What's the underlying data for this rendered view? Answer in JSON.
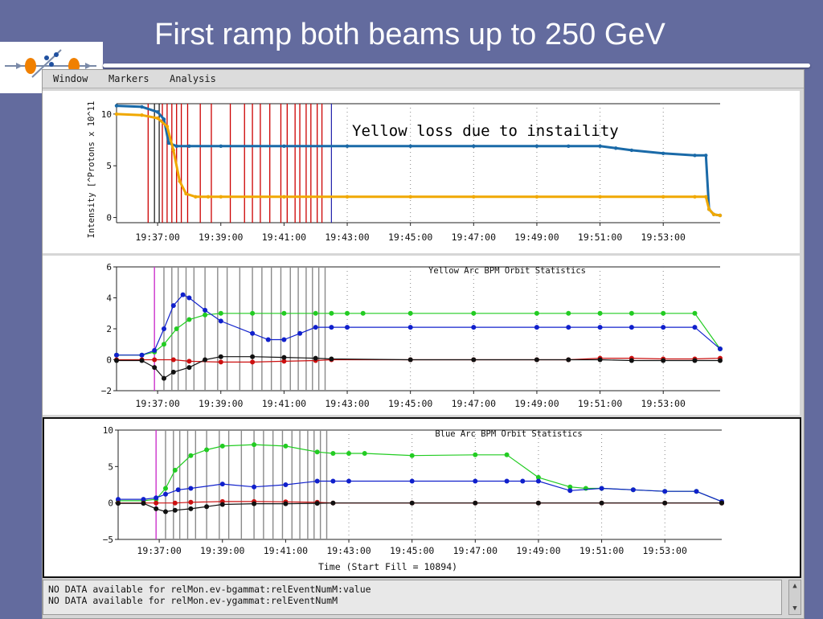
{
  "slide": {
    "title": "First ramp both beams up to 250 GeV"
  },
  "menu": {
    "items": [
      "Window",
      "Markers",
      "Analysis"
    ]
  },
  "status": {
    "lines": [
      "NO DATA available for relMon.ev-bgammat:relEventNumM:value",
      "NO DATA available for relMon.ev-ygammat:relEventNumM"
    ]
  },
  "colors": {
    "yellow_beam": "#f0a800",
    "blue_beam": "#1060a0",
    "marker_red": "#cc0000",
    "green": "#22cc22",
    "blue": "#1020cc",
    "red": "#cc1010",
    "black": "#111111"
  },
  "chart_data": [
    {
      "type": "line",
      "title": "",
      "annotation": "Yellow loss due to instaility",
      "ylabel": "Intensity [^Protons x 10^11",
      "xlabel": "",
      "time_ticks": [
        "19:37:00",
        "19:39:00",
        "19:41:00",
        "19:43:00",
        "19:45:00",
        "19:47:00",
        "19:49:00",
        "19:51:00",
        "19:53:00"
      ],
      "y_ticks": [
        "0",
        "5",
        "10"
      ],
      "ylim": [
        -0.5,
        11
      ],
      "xlim_minutes": [
        -1.3,
        17.8
      ],
      "grid": "vertical dotted",
      "series": [
        {
          "color": "#1a6aa8",
          "x": [
            -1.3,
            -0.5,
            0,
            0.2,
            0.35,
            0.6,
            1,
            2,
            4,
            6,
            8,
            10,
            12,
            13,
            14,
            14.5,
            15,
            16,
            17,
            17.35,
            17.45,
            17.6,
            17.8
          ],
          "y": [
            10.8,
            10.7,
            10.2,
            9.5,
            7.2,
            6.9,
            6.9,
            6.9,
            6.9,
            6.9,
            6.9,
            6.9,
            6.9,
            6.9,
            6.9,
            6.7,
            6.5,
            6.2,
            6,
            6,
            0.8,
            0.3,
            0.2
          ]
        },
        {
          "color": "#f0a800",
          "x": [
            -1.3,
            -0.5,
            0,
            0.3,
            0.5,
            0.7,
            0.9,
            1.2,
            1.6,
            2,
            4,
            6,
            8,
            10,
            12,
            14,
            16,
            17,
            17.35,
            17.45,
            17.6,
            17.8
          ],
          "y": [
            10,
            9.9,
            9.6,
            8.8,
            6.5,
            3.5,
            2.3,
            2,
            2,
            2,
            2,
            2,
            2,
            2,
            2,
            2,
            2,
            2,
            2,
            0.8,
            0.3,
            0.2
          ]
        }
      ],
      "markers_red_minutes": [
        -0.3,
        0.15,
        0.3,
        0.45,
        0.6,
        0.75,
        0.95,
        1.35,
        1.7,
        2.3,
        2.75,
        3,
        3.25,
        3.55,
        3.9,
        4.1,
        4.35,
        4.5,
        4.7,
        4.85,
        5.05,
        5.2
      ],
      "markers_black_minutes": [
        -0.1,
        0.05
      ],
      "marker_blue_minutes": [
        5.5
      ]
    },
    {
      "type": "line",
      "title": "Yellow Arc BPM Orbit Statistics",
      "xlabel": "",
      "time_ticks": [
        "19:37:00",
        "19:39:00",
        "19:41:00",
        "19:43:00",
        "19:45:00",
        "19:47:00",
        "19:49:00",
        "19:51:00",
        "19:53:00"
      ],
      "y_ticks": [
        "6",
        "4",
        "2",
        "0",
        "−2"
      ],
      "ylim": [
        -2,
        6
      ],
      "xlim_minutes": [
        -1.3,
        17.8
      ],
      "grid": "vertical dotted",
      "series": [
        {
          "color": "#22cc22",
          "x": [
            -1.3,
            -0.5,
            -0.1,
            0.2,
            0.6,
            1,
            1.5,
            2,
            3,
            4,
            5,
            5.5,
            6,
            6.5,
            8,
            10,
            12,
            13,
            14,
            15,
            16,
            17,
            17.8
          ],
          "y": [
            0.3,
            0.3,
            0.5,
            1,
            2,
            2.6,
            2.9,
            3,
            3,
            3,
            3,
            3,
            3,
            3,
            3,
            3,
            3,
            3,
            3,
            3,
            3,
            3,
            0.7
          ]
        },
        {
          "color": "#1020cc",
          "x": [
            -1.3,
            -0.5,
            -0.1,
            0.2,
            0.5,
            0.8,
            1,
            1.5,
            2,
            3,
            3.5,
            4,
            4.5,
            5,
            5.5,
            6,
            8,
            10,
            12,
            13,
            14,
            15,
            16,
            17,
            17.8
          ],
          "y": [
            0.3,
            0.3,
            0.6,
            2,
            3.5,
            4.2,
            4,
            3.2,
            2.5,
            1.7,
            1.3,
            1.3,
            1.7,
            2.1,
            2.1,
            2.1,
            2.1,
            2.1,
            2.1,
            2.1,
            2.1,
            2.1,
            2.1,
            2.1,
            0.7
          ]
        },
        {
          "color": "#cc1010",
          "x": [
            -1.3,
            -0.5,
            -0.1,
            0.5,
            1,
            2,
            3,
            4,
            5,
            5.5,
            8,
            10,
            12,
            13,
            14,
            15,
            16,
            17,
            17.8
          ],
          "y": [
            0,
            0,
            0,
            0,
            -0.1,
            -0.15,
            -0.15,
            -0.1,
            -0.05,
            0,
            0,
            0,
            0,
            0,
            0.1,
            0.1,
            0.05,
            0.05,
            0.1
          ]
        },
        {
          "color": "#111111",
          "x": [
            -1.3,
            -0.5,
            -0.1,
            0.2,
            0.5,
            1,
            1.5,
            2,
            3,
            4,
            5,
            5.5,
            8,
            10,
            12,
            13,
            14,
            15,
            16,
            17,
            17.8
          ],
          "y": [
            -0.05,
            -0.05,
            -0.5,
            -1.2,
            -0.8,
            -0.5,
            0,
            0.2,
            0.2,
            0.15,
            0.1,
            0.05,
            0,
            0,
            0,
            0,
            0,
            -0.05,
            -0.05,
            -0.05,
            -0.05
          ]
        }
      ],
      "markers_magenta_minutes": [
        -0.1
      ],
      "markers_grey_minutes": [
        0.2,
        0.45,
        0.65,
        0.9,
        1.15,
        1.5,
        1.9,
        2.2,
        2.6,
        3.0,
        3.3,
        3.6,
        3.9,
        4.2,
        4.45,
        4.7,
        4.9,
        5.1,
        5.3
      ]
    },
    {
      "type": "line",
      "title": "Blue Arc BPM Orbit Statistics",
      "xlabel": "Time (Start Fill = 10894)",
      "time_ticks": [
        "19:37:00",
        "19:39:00",
        "19:41:00",
        "19:43:00",
        "19:45:00",
        "19:47:00",
        "19:49:00",
        "19:51:00",
        "19:53:00"
      ],
      "y_ticks": [
        "10",
        "5",
        "0",
        "−5"
      ],
      "ylim": [
        -5,
        10
      ],
      "xlim_minutes": [
        -1.3,
        17.8
      ],
      "grid": "vertical dotted",
      "series": [
        {
          "color": "#22cc22",
          "x": [
            -1.3,
            -0.5,
            -0.1,
            0.2,
            0.5,
            1,
            1.5,
            2,
            3,
            4,
            5,
            5.5,
            6,
            6.5,
            8,
            10,
            11,
            12,
            13,
            13.5,
            14,
            15,
            16,
            17,
            17.8
          ],
          "y": [
            0.3,
            0.3,
            0.5,
            2,
            4.5,
            6.5,
            7.3,
            7.8,
            8,
            7.8,
            7,
            6.8,
            6.8,
            6.8,
            6.5,
            6.6,
            6.6,
            3.5,
            2.2,
            2,
            2,
            1.8,
            1.6,
            1.6,
            0.2
          ]
        },
        {
          "color": "#1020cc",
          "x": [
            -1.3,
            -0.5,
            -0.1,
            0.2,
            0.6,
            1,
            2,
            3,
            4,
            5,
            5.5,
            6,
            8,
            10,
            11,
            11.5,
            12,
            13,
            14,
            15,
            16,
            17,
            17.8
          ],
          "y": [
            0.5,
            0.5,
            0.7,
            1.2,
            1.8,
            2,
            2.6,
            2.2,
            2.5,
            3,
            3,
            3,
            3,
            3,
            3,
            3,
            3,
            1.7,
            2,
            1.8,
            1.6,
            1.6,
            0.2
          ]
        },
        {
          "color": "#cc1010",
          "x": [
            -1.3,
            -0.5,
            -0.1,
            0.5,
            1,
            2,
            3,
            4,
            5,
            5.5,
            8,
            10,
            12,
            14,
            16,
            17.8
          ],
          "y": [
            0,
            0,
            0,
            0,
            0.1,
            0.2,
            0.2,
            0.15,
            0.1,
            0,
            0,
            0,
            0,
            0,
            0,
            0
          ]
        },
        {
          "color": "#111111",
          "x": [
            -1.3,
            -0.5,
            -0.1,
            0.2,
            0.5,
            1,
            1.5,
            2,
            3,
            4,
            5,
            5.5,
            8,
            10,
            12,
            14,
            16,
            17.8
          ],
          "y": [
            -0.05,
            -0.05,
            -0.8,
            -1.2,
            -1,
            -0.8,
            -0.5,
            -0.2,
            -0.1,
            -0.1,
            -0.05,
            0,
            0,
            0,
            0,
            0,
            0,
            0
          ]
        }
      ],
      "markers_magenta_minutes": [
        -0.1
      ],
      "markers_grey_minutes": [
        0.2,
        0.45,
        0.65,
        0.9,
        1.15,
        1.5,
        1.9,
        2.2,
        2.6,
        3.0,
        3.3,
        3.6,
        3.9,
        4.2,
        4.45,
        4.7,
        4.9,
        5.1,
        5.3
      ]
    }
  ]
}
